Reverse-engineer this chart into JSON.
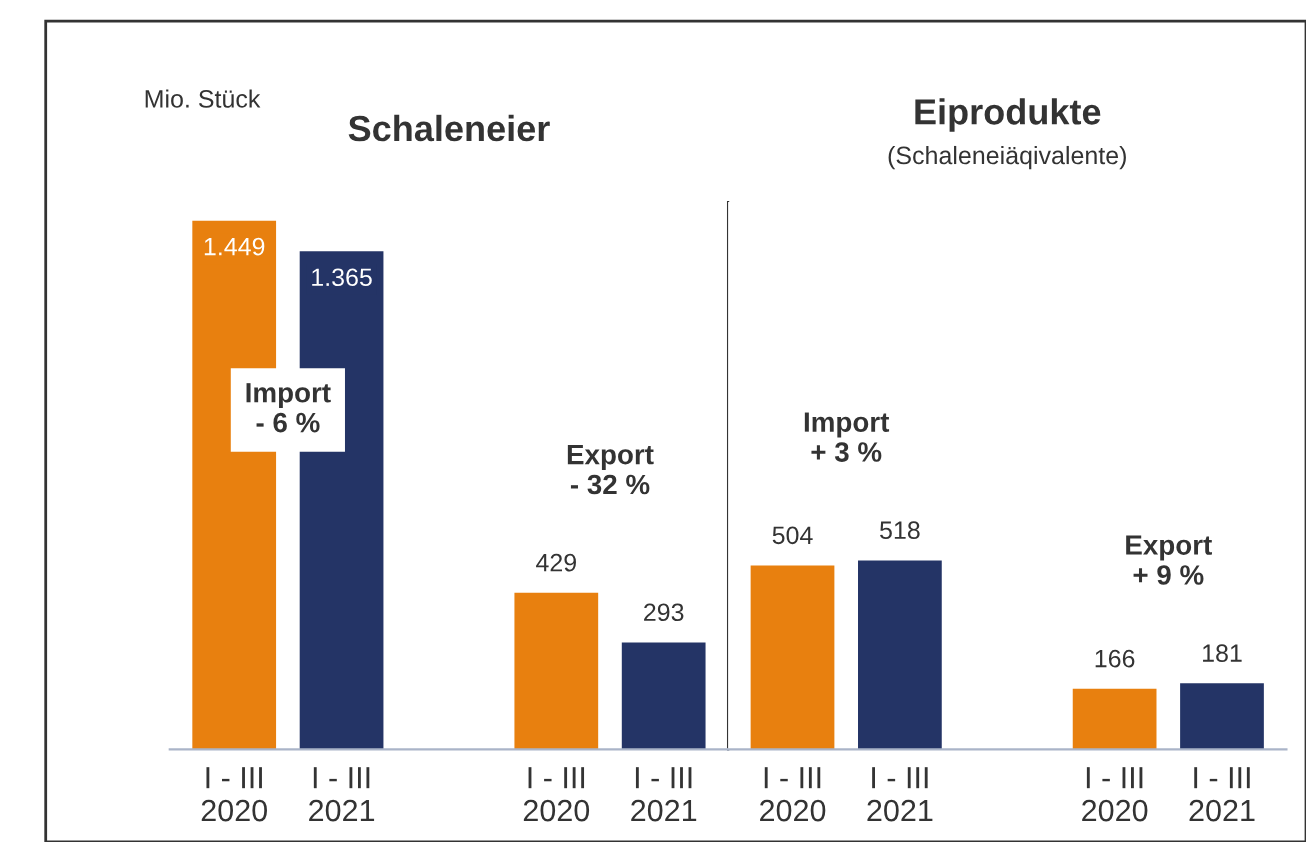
{
  "chart_data": [
    {
      "type": "bar",
      "title": "Schaleneier",
      "annotations": [
        "Mio. Stück",
        "Import\n- 6 %",
        "Export\n- 32 %"
      ],
      "categories": [
        "I - III\n2020",
        "I - III\n2021",
        null,
        "I - III\n2020",
        "I - III\n2021"
      ],
      "values": [
        1449,
        1365,
        null,
        429,
        293
      ],
      "colors": [
        "#e8800f",
        "#243466",
        null,
        "#e8800f",
        "#243466"
      ],
      "value_labels": [
        "1.449",
        "1.365",
        null,
        "429",
        "293"
      ],
      "ylim": [
        0,
        1500
      ],
      "tick_labels": "x",
      "grid": false,
      "legend": false
    },
    {
      "type": "bar",
      "title": "Eiprodukte",
      "subtitle": "(Schaleneiäqivalente)",
      "annotations": [
        "Import\n+ 3 %",
        "Export\n+ 9 %"
      ],
      "categories": [
        "I - III\n2020",
        "I - III\n2021",
        null,
        "I - III\n2020",
        "I - III\n2021"
      ],
      "values": [
        504,
        518,
        null,
        166,
        181
      ],
      "colors": [
        "#e8800f",
        "#243466",
        null,
        "#e8800f",
        "#243466"
      ],
      "value_labels": [
        "504",
        "518",
        null,
        "166",
        "181"
      ],
      "ylim": [
        0,
        1500
      ],
      "tick_labels": "x",
      "grid": false,
      "legend": false
    }
  ]
}
